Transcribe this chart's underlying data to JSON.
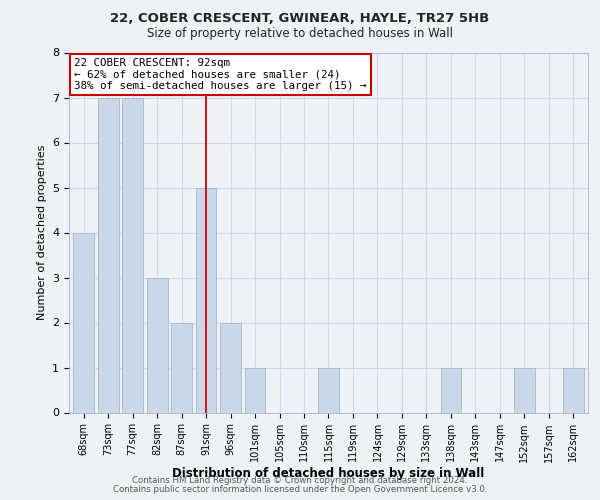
{
  "title1": "22, COBER CRESCENT, GWINEAR, HAYLE, TR27 5HB",
  "title2": "Size of property relative to detached houses in Wall",
  "xlabel": "Distribution of detached houses by size in Wall",
  "ylabel": "Number of detached properties",
  "bar_color": "#c8d8e8",
  "bar_edgecolor": "#a8bece",
  "categories": [
    "68sqm",
    "73sqm",
    "77sqm",
    "82sqm",
    "87sqm",
    "91sqm",
    "96sqm",
    "101sqm",
    "105sqm",
    "110sqm",
    "115sqm",
    "119sqm",
    "124sqm",
    "129sqm",
    "133sqm",
    "138sqm",
    "143sqm",
    "147sqm",
    "152sqm",
    "157sqm",
    "162sqm"
  ],
  "values": [
    4,
    7,
    7,
    3,
    2,
    5,
    2,
    1,
    0,
    0,
    1,
    0,
    0,
    0,
    0,
    1,
    0,
    0,
    1,
    0,
    1
  ],
  "vline_x": 5,
  "vline_color": "#cc0000",
  "annotation_title": "22 COBER CRESCENT: 92sqm",
  "annotation_line1": "← 62% of detached houses are smaller (24)",
  "annotation_line2": "38% of semi-detached houses are larger (15) →",
  "annotation_box_edgecolor": "#cc0000",
  "ylim": [
    0,
    8
  ],
  "yticks": [
    0,
    1,
    2,
    3,
    4,
    5,
    6,
    7,
    8
  ],
  "footer1": "Contains HM Land Registry data © Crown copyright and database right 2024.",
  "footer2": "Contains public sector information licensed under the Open Government Licence v3.0.",
  "grid_color": "#d0dae4",
  "background_color": "#eef2f6"
}
